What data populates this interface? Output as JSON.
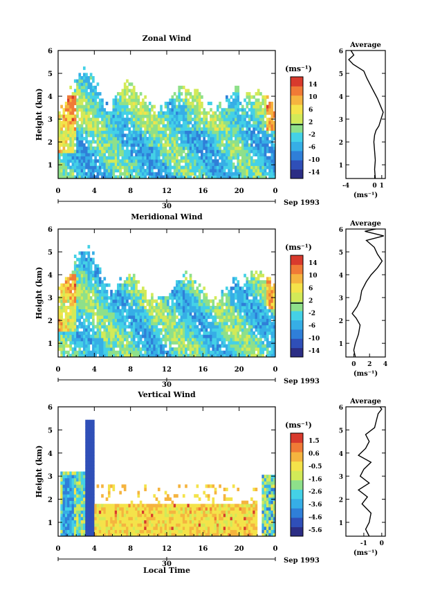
{
  "colors": {
    "scale": [
      "#2b2d84",
      "#2f4fb8",
      "#2f7fd8",
      "#36aee6",
      "#44d1e6",
      "#8ee08a",
      "#d2ea58",
      "#f4e34a",
      "#f5b43f",
      "#f07a36",
      "#d83a2d"
    ],
    "axis": "#000000",
    "average_line": "#000000"
  },
  "chart_data": [
    {
      "type": "heatmap",
      "id": "zonal",
      "title": "Zonal Wind",
      "ylabel": "Height (km)",
      "x_ticks": [
        "0",
        "4",
        "8",
        "12",
        "16",
        "20",
        "0"
      ],
      "date_tick": "30",
      "date_label": "Sep 1993",
      "y_ticks": [
        "1",
        "2",
        "3",
        "4",
        "5",
        "6"
      ],
      "ylim": [
        0.4,
        6.0
      ],
      "colorbar": {
        "unit": "(ms⁻¹)",
        "ticks": [
          "14",
          "10",
          "6",
          "2",
          "-2",
          "-6",
          "-10",
          "-14"
        ],
        "range": [
          -14,
          14
        ]
      },
      "average": {
        "title": "Average",
        "xlabel": "(ms⁻¹)",
        "x_ticks": [
          "-4",
          "0",
          "1"
        ],
        "xlim": [
          -4,
          1.5
        ],
        "profile": [
          {
            "h": 0.4,
            "v": 0.1
          },
          {
            "h": 0.8,
            "v": 0.0
          },
          {
            "h": 1.2,
            "v": 0.1
          },
          {
            "h": 1.6,
            "v": 0.0
          },
          {
            "h": 2.0,
            "v": -0.1
          },
          {
            "h": 2.3,
            "v": 0.0
          },
          {
            "h": 2.5,
            "v": 0.2
          },
          {
            "h": 2.7,
            "v": 0.6
          },
          {
            "h": 3.0,
            "v": 0.9
          },
          {
            "h": 3.3,
            "v": 1.2
          },
          {
            "h": 3.6,
            "v": 0.8
          },
          {
            "h": 3.9,
            "v": 0.4
          },
          {
            "h": 4.2,
            "v": -0.1
          },
          {
            "h": 4.5,
            "v": -0.6
          },
          {
            "h": 4.8,
            "v": -1.1
          },
          {
            "h": 5.1,
            "v": -1.5
          },
          {
            "h": 5.4,
            "v": -3.0
          },
          {
            "h": 5.6,
            "v": -3.6
          },
          {
            "h": 5.8,
            "v": -2.9
          },
          {
            "h": 6.0,
            "v": -3.3
          }
        ]
      }
    },
    {
      "type": "heatmap",
      "id": "meridional",
      "title": "Meridional Wind",
      "ylabel": "Height (km)",
      "x_ticks": [
        "0",
        "4",
        "8",
        "12",
        "16",
        "20",
        "0"
      ],
      "date_tick": "30",
      "date_label": "Sep 1993",
      "y_ticks": [
        "1",
        "2",
        "3",
        "4",
        "5",
        "6"
      ],
      "ylim": [
        0.4,
        6.0
      ],
      "colorbar": {
        "unit": "(ms⁻¹)",
        "ticks": [
          "14",
          "10",
          "6",
          "2",
          "-2",
          "-6",
          "-10",
          "-14"
        ],
        "range": [
          -14,
          14
        ]
      },
      "average": {
        "title": "Average",
        "xlabel": "(ms⁻¹)",
        "x_ticks": [
          "0",
          "2",
          "4"
        ],
        "xlim": [
          -1,
          4
        ],
        "profile": [
          {
            "h": 0.4,
            "v": 0.2
          },
          {
            "h": 0.7,
            "v": 0.0
          },
          {
            "h": 1.0,
            "v": 0.2
          },
          {
            "h": 1.4,
            "v": 0.6
          },
          {
            "h": 1.8,
            "v": 0.8
          },
          {
            "h": 2.1,
            "v": 0.3
          },
          {
            "h": 2.3,
            "v": -0.2
          },
          {
            "h": 2.6,
            "v": 0.4
          },
          {
            "h": 2.9,
            "v": 0.8
          },
          {
            "h": 3.3,
            "v": 1.0
          },
          {
            "h": 3.7,
            "v": 1.6
          },
          {
            "h": 4.0,
            "v": 2.2
          },
          {
            "h": 4.3,
            "v": 3.0
          },
          {
            "h": 4.6,
            "v": 3.6
          },
          {
            "h": 4.9,
            "v": 3.0
          },
          {
            "h": 5.2,
            "v": 2.6
          },
          {
            "h": 5.5,
            "v": 1.6
          },
          {
            "h": 5.7,
            "v": 3.8
          },
          {
            "h": 5.9,
            "v": 1.4
          },
          {
            "h": 6.0,
            "v": 2.8
          }
        ]
      }
    },
    {
      "type": "heatmap",
      "id": "vertical",
      "title": "Vertical Wind",
      "ylabel": "Height (km)",
      "xlabel": "Local Time",
      "x_ticks": [
        "0",
        "4",
        "8",
        "12",
        "16",
        "20",
        "0"
      ],
      "date_tick": "30",
      "date_label": "Sep 1993",
      "y_ticks": [
        "1",
        "2",
        "3",
        "4",
        "5",
        "6"
      ],
      "ylim": [
        0.4,
        6.0
      ],
      "colorbar": {
        "unit": "(ms⁻¹)",
        "ticks": [
          "1.5",
          "0.6",
          "-0.5",
          "-1.6",
          "-2.6",
          "-3.6",
          "-4.6",
          "-5.6"
        ],
        "range": [
          -5.6,
          1.5
        ]
      },
      "average": {
        "title": "Average",
        "xlabel": "(ms⁻¹)",
        "x_ticks": [
          "-1",
          "0"
        ],
        "xlim": [
          -2,
          0.2
        ],
        "profile": [
          {
            "h": 0.4,
            "v": -0.7
          },
          {
            "h": 0.7,
            "v": -0.9
          },
          {
            "h": 1.0,
            "v": -0.7
          },
          {
            "h": 1.4,
            "v": -0.6
          },
          {
            "h": 1.8,
            "v": -1.1
          },
          {
            "h": 2.1,
            "v": -0.8
          },
          {
            "h": 2.4,
            "v": -1.3
          },
          {
            "h": 2.7,
            "v": -0.7
          },
          {
            "h": 3.0,
            "v": -1.2
          },
          {
            "h": 3.3,
            "v": -1.0
          },
          {
            "h": 3.6,
            "v": -0.6
          },
          {
            "h": 3.9,
            "v": -1.3
          },
          {
            "h": 4.2,
            "v": -0.9
          },
          {
            "h": 4.5,
            "v": -0.7
          },
          {
            "h": 4.8,
            "v": -0.9
          },
          {
            "h": 5.1,
            "v": -0.4
          },
          {
            "h": 5.4,
            "v": -0.3
          },
          {
            "h": 5.7,
            "v": -0.2
          },
          {
            "h": 5.9,
            "v": 0.0
          },
          {
            "h": 6.0,
            "v": -0.1
          }
        ]
      }
    }
  ]
}
